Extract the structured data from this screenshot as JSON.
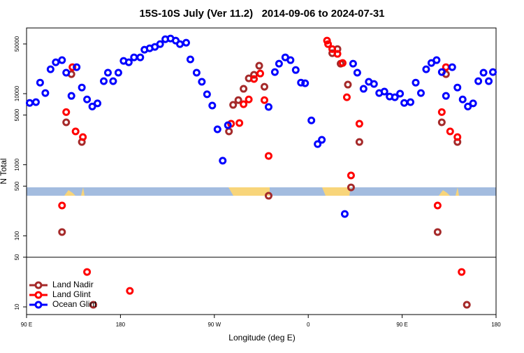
{
  "chart_data": {
    "type": "scatter",
    "title": "15S-10S July (Ver 11.2)   2014-09-06 to 2024-07-31",
    "x_label": "Longitude (deg E)",
    "y_label": "N Total",
    "log_y": true,
    "legend": "lower left",
    "xlim": [
      90,
      540
    ],
    "xticks": [
      {
        "value": 90,
        "label": "90 E"
      },
      180,
      {
        "value": 270,
        "label": "90 W"
      },
      {
        "value": 360,
        "label": "0"
      },
      {
        "value": 450,
        "label": "90 E"
      },
      {
        "value": 540,
        "label": "180"
      }
    ],
    "ylim": [
      7.8,
      84000
    ],
    "yticks": [
      10,
      50,
      100,
      500,
      1000,
      5000,
      10000,
      50000
    ],
    "series": [
      {
        "name": "Land Nadir",
        "color": "#a52a2a",
        "x": [
          124,
          128,
          133,
          143,
          154,
          284,
          288,
          293,
          298,
          303,
          308,
          313,
          318,
          322,
          383,
          388,
          391,
          398,
          401,
          409,
          484,
          488,
          492,
          503,
          512
        ],
        "values": [
          113,
          3950,
          18800,
          2090,
          10.7,
          2940,
          6950,
          8100,
          11700,
          16400,
          18400,
          24700,
          12500,
          366,
          37100,
          42400,
          26400,
          13400,
          480,
          2090,
          113,
          3950,
          18800,
          2090,
          10.7
        ]
      },
      {
        "name": "Land Glint",
        "color": "#ff0000",
        "x": [
          124,
          128,
          134,
          137,
          144,
          148,
          189,
          286,
          294,
          298,
          303,
          308,
          314,
          318,
          322,
          378,
          379,
          383,
          388,
          393,
          397,
          401,
          409,
          484,
          488,
          492,
          496,
          503,
          507
        ],
        "values": [
          267,
          5500,
          23600,
          2940,
          2450,
          31,
          16.8,
          3770,
          3860,
          7100,
          8300,
          16100,
          19200,
          8100,
          1330,
          55700,
          49800,
          42400,
          36300,
          27000,
          8900,
          707,
          3770,
          267,
          5500,
          23600,
          2940,
          2450,
          31
        ]
      },
      {
        "name": "Ocean Glint",
        "color": "#0000ff",
        "x": [
          93,
          99,
          103,
          108,
          113,
          118,
          124,
          128,
          133,
          138,
          143,
          148,
          153,
          158,
          164,
          168,
          173,
          178,
          183,
          188,
          193,
          199,
          203,
          208,
          213,
          218,
          223,
          228,
          233,
          237,
          243,
          247,
          253,
          258,
          263,
          268,
          273,
          278,
          283,
          322,
          328,
          332,
          338,
          343,
          348,
          353,
          357,
          363,
          369,
          373,
          395,
          403,
          407,
          413,
          418,
          423,
          428,
          433,
          438,
          443,
          448,
          452,
          458,
          463,
          468,
          473,
          478,
          483,
          488,
          492,
          498,
          503,
          508,
          513,
          518,
          523,
          528,
          533,
          537
        ],
        "values": [
          7400,
          7600,
          14300,
          10200,
          22000,
          27600,
          29600,
          19700,
          9300,
          23600,
          12200,
          8300,
          6600,
          7300,
          15000,
          19700,
          15000,
          19700,
          28900,
          27600,
          32400,
          32400,
          41500,
          43400,
          45500,
          49800,
          58300,
          59700,
          55700,
          49800,
          52100,
          30300,
          19700,
          14700,
          9800,
          6800,
          3150,
          1140,
          3600,
          6500,
          20100,
          26400,
          32400,
          29600,
          21500,
          14300,
          14000,
          4200,
          1950,
          2240,
          203,
          26400,
          19700,
          11700,
          14700,
          13700,
          10200,
          10700,
          9100,
          8900,
          10000,
          7400,
          7600,
          14300,
          10200,
          22000,
          27000,
          29600,
          20100,
          9300,
          23600,
          12200,
          8300,
          6600,
          7300,
          15000,
          19700,
          15000,
          20100
        ]
      }
    ]
  }
}
